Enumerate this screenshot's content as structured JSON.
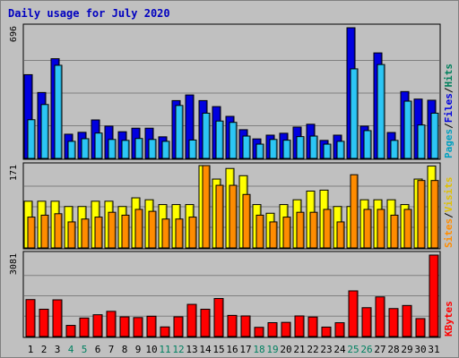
{
  "title": "Daily usage for July 2020",
  "legend": {
    "pages": "Pages",
    "files": "Files",
    "hits": "Hits",
    "sites": "Sites",
    "visits": "Visits",
    "kbytes": "KBytes",
    "separator": "/"
  },
  "colors": {
    "hits": "#0000e0",
    "files": "#2cc6f5",
    "pages": "#00a0c0",
    "hits_label": "#00805c",
    "visits": "#ffff00",
    "sites": "#ff8c00",
    "kbytes": "#ff0000",
    "weekend_label": "#008060",
    "weekday_label": "#000000"
  },
  "chart_data": [
    {
      "type": "bar",
      "name": "hits-files-pages",
      "ylim": [
        0,
        696
      ],
      "max_label": "696",
      "categories": [
        "1",
        "2",
        "3",
        "4",
        "5",
        "6",
        "7",
        "8",
        "9",
        "10",
        "11",
        "12",
        "13",
        "14",
        "15",
        "16",
        "17",
        "18",
        "19",
        "20",
        "21",
        "22",
        "23",
        "24",
        "25",
        "26",
        "27",
        "28",
        "29",
        "30",
        "31"
      ],
      "series": [
        {
          "name": "Hits",
          "values": [
            446,
            351,
            531,
            129,
            139,
            205,
            172,
            142,
            161,
            161,
            115,
            308,
            338,
            308,
            276,
            224,
            153,
            104,
            124,
            134,
            167,
            182,
            96,
            124,
            696,
            172,
            562,
            138,
            356,
            316,
            310
          ]
        },
        {
          "name": "Files",
          "values": [
            206,
            287,
            496,
            91,
            105,
            135,
            101,
            96,
            106,
            101,
            91,
            282,
            98,
            241,
            199,
            192,
            119,
            76,
            101,
            97,
            116,
            119,
            76,
            91,
            477,
            148,
            500,
            96,
            305,
            178,
            241
          ]
        }
      ]
    },
    {
      "type": "bar",
      "name": "visits-sites",
      "ylim": [
        0,
        171
      ],
      "max_label": "171",
      "series": [
        {
          "name": "Visits",
          "values": [
            97,
            97,
            97,
            86,
            86,
            97,
            97,
            86,
            104,
            100,
            90,
            90,
            90,
            171,
            143,
            165,
            150,
            90,
            72,
            90,
            100,
            118,
            120,
            86,
            86,
            100,
            100,
            100,
            90,
            143,
            170
          ]
        },
        {
          "name": "Sites",
          "values": [
            64,
            68,
            71,
            54,
            60,
            64,
            74,
            68,
            80,
            76,
            60,
            60,
            64,
            171,
            130,
            130,
            111,
            68,
            54,
            64,
            74,
            74,
            80,
            54,
            152,
            80,
            80,
            68,
            80,
            140,
            140
          ]
        }
      ]
    },
    {
      "type": "bar",
      "name": "kbytes",
      "ylim": [
        0,
        3081
      ],
      "max_label": "3081",
      "series": [
        {
          "name": "KBytes",
          "values": [
            1398,
            1032,
            1388,
            421,
            700,
            824,
            953,
            743,
            717,
            768,
            364,
            745,
            1217,
            1032,
            1438,
            800,
            779,
            348,
            524,
            536,
            779,
            738,
            357,
            522,
            1727,
            1091,
            1498,
            1058,
            1174,
            679,
            3081
          ]
        }
      ]
    }
  ]
}
